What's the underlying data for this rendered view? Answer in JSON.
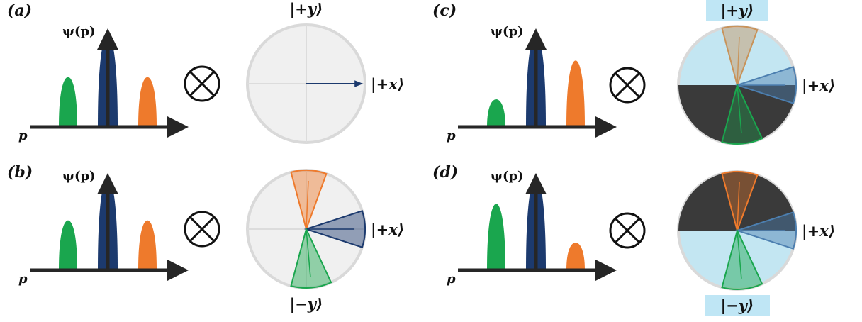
{
  "panels": [
    {
      "label": "(a)",
      "axis_y": "ψ(p)",
      "axis_x": "p",
      "peaks": [
        {
          "name": "left",
          "color": "#1aa64e",
          "height": 0.54
        },
        {
          "name": "center",
          "color": "#1c3a6e",
          "height": 1.0
        },
        {
          "name": "right",
          "color": "#ee7a2c",
          "height": 0.54
        }
      ],
      "sphere": {
        "fill": "#f0f0f0",
        "divider": true,
        "arrow_color": "#1c3a6e",
        "sectors": [],
        "dark_half": "none",
        "labels": {
          "top": "|+y⟩",
          "right": "|+x⟩",
          "bottom": ""
        },
        "highlight_top": false,
        "highlight_bottom": false
      }
    },
    {
      "label": "(b)",
      "axis_y": "ψ(p)",
      "axis_x": "p",
      "peaks": [
        {
          "name": "left",
          "color": "#1aa64e",
          "height": 0.54
        },
        {
          "name": "center",
          "color": "#1c3a6e",
          "height": 1.0
        },
        {
          "name": "right",
          "color": "#ee7a2c",
          "height": 0.54
        }
      ],
      "sphere": {
        "fill": "#f0f0f0",
        "divider": true,
        "arrow_color": "",
        "sectors": [
          {
            "name": "orange",
            "color": "#ee7a2c",
            "start": 255,
            "end": 290
          },
          {
            "name": "blue",
            "color": "#1c3a6e",
            "start": -18,
            "end": 18
          },
          {
            "name": "green",
            "color": "#1aa64e",
            "start": 65,
            "end": 105
          }
        ],
        "dark_half": "none",
        "labels": {
          "top": "",
          "right": "|+x⟩",
          "bottom": "|−y⟩"
        },
        "highlight_top": false,
        "highlight_bottom": false
      }
    },
    {
      "label": "(c)",
      "axis_y": "ψ(p)",
      "axis_x": "p",
      "peaks": [
        {
          "name": "left",
          "color": "#1aa64e",
          "height": 0.3
        },
        {
          "name": "center",
          "color": "#1c3a6e",
          "height": 1.0
        },
        {
          "name": "right",
          "color": "#ee7a2c",
          "height": 0.72
        }
      ],
      "sphere": {
        "fill": "#c3e6f2",
        "divider": false,
        "arrow_color": "",
        "sectors": [
          {
            "name": "orange",
            "color": "#c8935a",
            "start": 255,
            "end": 290
          },
          {
            "name": "blue",
            "color": "#4c7fb0",
            "start": -18,
            "end": 18
          },
          {
            "name": "green",
            "color": "#1aa64e",
            "start": 65,
            "end": 105
          }
        ],
        "dark_half": "bottom",
        "labels": {
          "top": "|+y⟩",
          "right": "|+x⟩",
          "bottom": ""
        },
        "highlight_top": true,
        "highlight_bottom": false
      }
    },
    {
      "label": "(d)",
      "axis_y": "ψ(p)",
      "axis_x": "p",
      "peaks": [
        {
          "name": "left",
          "color": "#1aa64e",
          "height": 0.72
        },
        {
          "name": "center",
          "color": "#1c3a6e",
          "height": 1.0
        },
        {
          "name": "right",
          "color": "#ee7a2c",
          "height": 0.3
        }
      ],
      "sphere": {
        "fill": "#c3e6f2",
        "divider": false,
        "arrow_color": "",
        "sectors": [
          {
            "name": "orange",
            "color": "#ee7a2c",
            "start": 255,
            "end": 290
          },
          {
            "name": "blue",
            "color": "#4c7fb0",
            "start": -18,
            "end": 18
          },
          {
            "name": "green",
            "color": "#1aa64e",
            "start": 65,
            "end": 105
          }
        ],
        "dark_half": "top",
        "labels": {
          "top": "",
          "right": "|+x⟩",
          "bottom": "|−y⟩"
        },
        "highlight_top": false,
        "highlight_bottom": true
      }
    }
  ],
  "operator_symbol": "tensor-product-icon",
  "colors": {
    "axis": "#262626",
    "dark_half": "#3a3a3a",
    "highlight": "#bfe6f5",
    "sphere_rim": "#d9d9d9"
  }
}
